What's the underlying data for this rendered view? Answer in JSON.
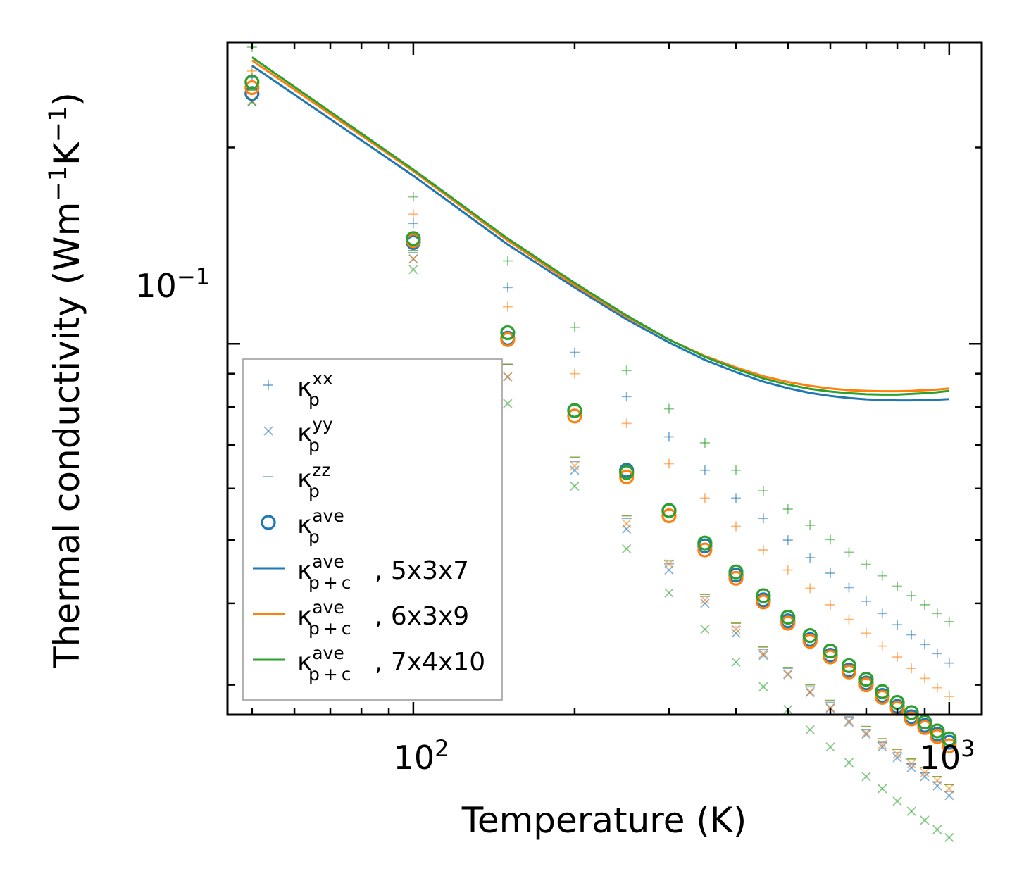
{
  "chart_data": {
    "type": "scatter",
    "xscale": "log",
    "yscale": "log",
    "xlim": [
      45,
      1150
    ],
    "ylim": [
      0.027,
      0.29
    ],
    "xlabel": "Temperature (K)",
    "ylabel": {
      "main": "Thermal conductivity (Wm",
      "sup1": "−1",
      "mid": "K",
      "sup2": "−1",
      "end": ")"
    },
    "x_ticks": [
      {
        "base": "10",
        "exp": "2"
      },
      {
        "base": "10",
        "exp": "3"
      }
    ],
    "y_ticks": [
      {
        "base": "10",
        "exp": "−1"
      }
    ],
    "colors": {
      "5x3x7": "#1f77b4",
      "6x3x9": "#ff7f0e",
      "7x4x10": "#2ca02c"
    },
    "temperatures": [
      50,
      100,
      150,
      200,
      250,
      300,
      350,
      400,
      450,
      500,
      550,
      600,
      650,
      700,
      750,
      800,
      850,
      900,
      950,
      1000
    ],
    "series": [
      {
        "name": "5x3x7",
        "kxx": [
          0.256,
          0.153,
          0.122,
          0.097,
          0.083,
          0.072,
          0.064,
          0.058,
          0.054,
          0.05,
          0.047,
          0.0445,
          0.0423,
          0.0403,
          0.0386,
          0.0371,
          0.0358,
          0.0346,
          0.0335,
          0.0324
        ],
        "kyy": [
          0.235,
          0.135,
          0.089,
          0.064,
          0.052,
          0.045,
          0.04,
          0.036,
          0.0333,
          0.0311,
          0.0292,
          0.0276,
          0.0263,
          0.0252,
          0.0241,
          0.0232,
          0.0224,
          0.0217,
          0.021,
          0.0203
        ],
        "kzz": [
          0.245,
          0.138,
          0.093,
          0.066,
          0.054,
          0.046,
          0.041,
          0.0368,
          0.034,
          0.0318,
          0.0298,
          0.0282,
          0.0268,
          0.0256,
          0.0245,
          0.0236,
          0.0227,
          0.022,
          0.0213,
          0.0206
        ],
        "kave": [
          0.242,
          0.143,
          0.102,
          0.079,
          0.064,
          0.0555,
          0.049,
          0.0442,
          0.0405,
          0.0376,
          0.0352,
          0.0333,
          0.0316,
          0.0302,
          0.0289,
          0.0278,
          0.0268,
          0.026,
          0.0252,
          0.0245
        ],
        "total": [
          0.267,
          0.181,
          0.142,
          0.122,
          0.109,
          0.1005,
          0.0945,
          0.0905,
          0.0875,
          0.0855,
          0.0841,
          0.0832,
          0.0826,
          0.0822,
          0.082,
          0.0819,
          0.0819,
          0.082,
          0.0821,
          0.0823
        ]
      },
      {
        "name": "6x3x9",
        "kxx": [
          0.262,
          0.158,
          0.114,
          0.09,
          0.0755,
          0.0655,
          0.058,
          0.0525,
          0.0483,
          0.045,
          0.0422,
          0.0398,
          0.0378,
          0.036,
          0.0344,
          0.0331,
          0.0318,
          0.0307,
          0.0297,
          0.0288
        ],
        "kyy": [
          0.236,
          0.135,
          0.089,
          0.065,
          0.053,
          0.046,
          0.0405,
          0.0365,
          0.0335,
          0.0312,
          0.0293,
          0.0277,
          0.0264,
          0.0253,
          0.0243,
          0.0235,
          0.0227,
          0.022,
          0.0214,
          0.0208
        ],
        "kzz": [
          0.245,
          0.139,
          0.093,
          0.067,
          0.0545,
          0.0465,
          0.0413,
          0.0373,
          0.0343,
          0.0319,
          0.03,
          0.0284,
          0.027,
          0.0259,
          0.0248,
          0.0239,
          0.0231,
          0.0224,
          0.0217,
          0.0211
        ],
        "kave": [
          0.247,
          0.144,
          0.1015,
          0.0775,
          0.0625,
          0.0545,
          0.0483,
          0.0437,
          0.0402,
          0.0373,
          0.035,
          0.0331,
          0.0314,
          0.03,
          0.0287,
          0.0276,
          0.0266,
          0.0258,
          0.025,
          0.0242
        ],
        "total": [
          0.272,
          0.184,
          0.144,
          0.123,
          0.11,
          0.1015,
          0.0958,
          0.092,
          0.0892,
          0.0874,
          0.0862,
          0.0854,
          0.0849,
          0.0847,
          0.0846,
          0.0846,
          0.0847,
          0.0849,
          0.0851,
          0.0854
        ]
      },
      {
        "name": "7x4x10",
        "kxx": [
          0.285,
          0.168,
          0.134,
          0.106,
          0.091,
          0.0795,
          0.0705,
          0.064,
          0.0595,
          0.0558,
          0.0527,
          0.0501,
          0.0479,
          0.0459,
          0.0441,
          0.0425,
          0.0411,
          0.0398,
          0.0386,
          0.0375
        ],
        "kyy": [
          0.235,
          0.13,
          0.081,
          0.0605,
          0.0485,
          0.0415,
          0.0365,
          0.0325,
          0.0298,
          0.0275,
          0.0256,
          0.0241,
          0.0228,
          0.0217,
          0.0208,
          0.0199,
          0.0192,
          0.0186,
          0.018,
          0.0175
        ],
        "kzz": [
          0.245,
          0.139,
          0.093,
          0.067,
          0.0545,
          0.0465,
          0.0413,
          0.0373,
          0.0343,
          0.0319,
          0.03,
          0.0284,
          0.027,
          0.0259,
          0.0248,
          0.0239,
          0.0231,
          0.0224,
          0.0217,
          0.0211
        ],
        "kave": [
          0.252,
          0.145,
          0.104,
          0.079,
          0.0635,
          0.0555,
          0.0495,
          0.0447,
          0.0411,
          0.0381,
          0.0357,
          0.0338,
          0.0321,
          0.0306,
          0.0293,
          0.0282,
          0.0272,
          0.0263,
          0.0255,
          0.0248
        ],
        "total": [
          0.275,
          0.185,
          0.145,
          0.124,
          0.1105,
          0.1015,
          0.0955,
          0.0915,
          0.0885,
          0.0866,
          0.0853,
          0.0845,
          0.084,
          0.0837,
          0.0836,
          0.0836,
          0.0838,
          0.084,
          0.0843,
          0.0847
        ]
      }
    ],
    "legend": {
      "position": "lower-left",
      "entries": [
        {
          "marker": "plus",
          "sym": "κ",
          "sub": "p",
          "sup": "xx",
          "suffix": ""
        },
        {
          "marker": "x",
          "sym": "κ",
          "sub": "p",
          "sup": "yy",
          "suffix": ""
        },
        {
          "marker": "dash",
          "sym": "κ",
          "sub": "p",
          "sup": "zz",
          "suffix": ""
        },
        {
          "marker": "circle",
          "sym": "κ",
          "sub": "p",
          "sup": "ave",
          "suffix": ""
        },
        {
          "marker": "line",
          "sym": "κ",
          "sub": "p + c",
          "sup": "ave",
          "suffix": ", 5x3x7"
        },
        {
          "marker": "line",
          "sym": "κ",
          "sub": "p + c",
          "sup": "ave",
          "suffix": ", 6x3x9"
        },
        {
          "marker": "line",
          "sym": "κ",
          "sub": "p + c",
          "sup": "ave",
          "suffix": ", 7x4x10"
        }
      ]
    }
  }
}
